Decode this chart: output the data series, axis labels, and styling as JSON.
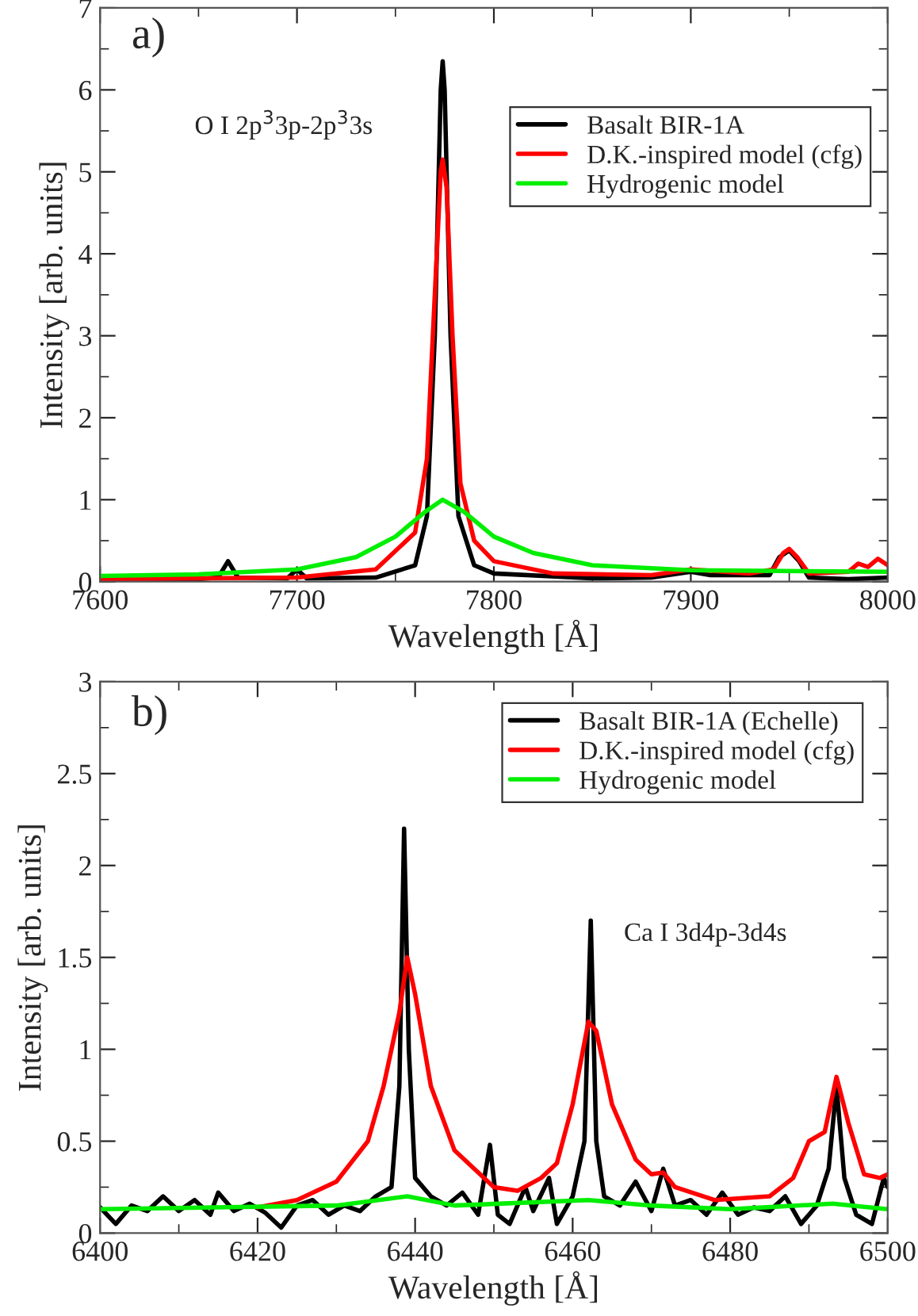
{
  "chart_data": [
    {
      "type": "line",
      "xlabel": "Wavelength [Å]",
      "ylabel": "Intensity [arb. units]",
      "annotations": [
        "a)",
        "O I 2p$^{3}$3p-2p$^{3}$3s"
      ],
      "xlim": [
        7600,
        8000
      ],
      "xticks": [
        7600,
        7700,
        7800,
        7900,
        8000
      ],
      "ylim": [
        0,
        7
      ],
      "yticks": [
        0,
        1,
        2,
        3,
        4,
        5,
        6,
        7
      ],
      "grid": false,
      "legend": "top right",
      "line_style": "solid",
      "series": [
        {
          "name": "Basalt BIR-1A",
          "color": "#000000",
          "x": [
            7600,
            7650,
            7660,
            7665,
            7670,
            7695,
            7700,
            7705,
            7740,
            7760,
            7766,
            7770,
            7773,
            7774,
            7775,
            7778,
            7782,
            7790,
            7800,
            7850,
            7880,
            7900,
            7910,
            7940,
            7945,
            7950,
            7955,
            7960,
            7980,
            8000
          ],
          "values": [
            0.03,
            0.03,
            0.05,
            0.25,
            0.05,
            0.04,
            0.15,
            0.04,
            0.05,
            0.2,
            0.8,
            3.0,
            6.0,
            6.35,
            6.0,
            3.0,
            0.8,
            0.2,
            0.1,
            0.04,
            0.05,
            0.12,
            0.08,
            0.08,
            0.3,
            0.38,
            0.25,
            0.05,
            0.03,
            0.05
          ]
        },
        {
          "name": "D.K.-inspired model (cfg)",
          "color": "#ff0000",
          "x": [
            7600,
            7700,
            7740,
            7760,
            7766,
            7770,
            7773,
            7774,
            7776,
            7779,
            7783,
            7790,
            7800,
            7830,
            7880,
            7900,
            7930,
            7942,
            7947,
            7950,
            7954,
            7960,
            7980,
            7985,
            7990,
            7995,
            8000
          ],
          "values": [
            0.03,
            0.05,
            0.15,
            0.6,
            1.5,
            3.5,
            5.0,
            5.15,
            4.8,
            3.0,
            1.2,
            0.5,
            0.25,
            0.1,
            0.08,
            0.15,
            0.1,
            0.15,
            0.35,
            0.4,
            0.3,
            0.1,
            0.12,
            0.22,
            0.18,
            0.28,
            0.2
          ]
        },
        {
          "name": "Hydrogenic model",
          "color": "#00ee00",
          "x": [
            7600,
            7650,
            7700,
            7730,
            7750,
            7765,
            7774,
            7785,
            7800,
            7820,
            7850,
            7900,
            8000
          ],
          "values": [
            0.07,
            0.09,
            0.15,
            0.3,
            0.55,
            0.85,
            1.0,
            0.85,
            0.55,
            0.35,
            0.2,
            0.14,
            0.12
          ]
        }
      ]
    },
    {
      "type": "line",
      "xlabel": "Wavelength [Å]",
      "ylabel": "Intensity [arb. units]",
      "annotations": [
        "b)",
        "Ca I 3d4p-3d4s"
      ],
      "xlim": [
        6400,
        6500
      ],
      "xticks": [
        6400,
        6420,
        6440,
        6460,
        6480,
        6500
      ],
      "ylim": [
        0,
        3
      ],
      "yticks": [
        0,
        {
          "value": 0.5,
          "label": "0.5"
        },
        1,
        {
          "value": 1.5,
          "label": "1.5"
        },
        2,
        {
          "value": 2.5,
          "label": "2.5"
        },
        3
      ],
      "grid": false,
      "legend": "top right",
      "line_style": "solid",
      "series": [
        {
          "name": "Basalt BIR-1A (Echelle)",
          "color": "#000000",
          "x": [
            6400,
            6402,
            6404,
            6406,
            6408,
            6410,
            6412,
            6414,
            6415,
            6417,
            6419,
            6421,
            6423,
            6425,
            6427,
            6429,
            6431,
            6433,
            6435,
            6437,
            6438,
            6438.6,
            6439.2,
            6440,
            6442,
            6444,
            6446,
            6448,
            6449.5,
            6450.5,
            6452,
            6454,
            6455,
            6457,
            6458,
            6460,
            6461.5,
            6462.3,
            6463,
            6464,
            6466,
            6468,
            6470,
            6471.5,
            6473,
            6475,
            6477,
            6479,
            6481,
            6483,
            6485,
            6487,
            6489,
            6491,
            6492.5,
            6493.5,
            6494.5,
            6496,
            6498,
            6499.5,
            6500
          ],
          "values": [
            0.14,
            0.05,
            0.15,
            0.12,
            0.2,
            0.12,
            0.18,
            0.1,
            0.22,
            0.12,
            0.16,
            0.11,
            0.03,
            0.15,
            0.18,
            0.1,
            0.15,
            0.12,
            0.2,
            0.25,
            0.8,
            2.2,
            1.0,
            0.3,
            0.2,
            0.15,
            0.22,
            0.1,
            0.48,
            0.1,
            0.05,
            0.25,
            0.12,
            0.3,
            0.05,
            0.2,
            0.5,
            1.7,
            0.5,
            0.2,
            0.15,
            0.28,
            0.12,
            0.35,
            0.15,
            0.18,
            0.1,
            0.22,
            0.1,
            0.14,
            0.12,
            0.2,
            0.05,
            0.15,
            0.35,
            0.8,
            0.3,
            0.1,
            0.05,
            0.3,
            0.25
          ]
        },
        {
          "name": "D.K.-inspired model (cfg)",
          "color": "#ff0000",
          "x": [
            6420,
            6425,
            6430,
            6434,
            6436,
            6438,
            6439,
            6440,
            6442,
            6445,
            6450,
            6453,
            6456,
            6458,
            6460,
            6462,
            6463,
            6465,
            6468,
            6470,
            6471.5,
            6473,
            6478,
            6485,
            6488,
            6490,
            6492,
            6493.5,
            6495,
            6497,
            6499,
            6500
          ],
          "values": [
            0.14,
            0.18,
            0.28,
            0.5,
            0.8,
            1.2,
            1.5,
            1.3,
            0.8,
            0.45,
            0.25,
            0.23,
            0.3,
            0.38,
            0.7,
            1.15,
            1.1,
            0.7,
            0.4,
            0.32,
            0.33,
            0.25,
            0.18,
            0.2,
            0.3,
            0.5,
            0.55,
            0.85,
            0.6,
            0.32,
            0.3,
            0.32
          ]
        },
        {
          "name": "Hydrogenic model",
          "color": "#00ee00",
          "x": [
            6400,
            6430,
            6439,
            6445,
            6462,
            6470,
            6480,
            6493,
            6500
          ],
          "values": [
            0.13,
            0.15,
            0.2,
            0.15,
            0.18,
            0.15,
            0.13,
            0.16,
            0.13
          ]
        }
      ]
    }
  ]
}
